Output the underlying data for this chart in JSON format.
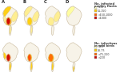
{
  "fig_bg": "#ffffff",
  "map_bg": "#f7f3e8",
  "outline_color": "#c8b89a",
  "maps_labels": [
    "A",
    "B",
    "C",
    "D"
  ],
  "legend_top_title1": "No. infected",
  "legend_top_title2": "poultry flocks",
  "legend_top_entries": [
    {
      "label": "1-50",
      "color": "#ffffcc"
    },
    {
      "label": "51-150",
      "color": "#ffcc00"
    },
    {
      "label": ">150-1000",
      "color": "#ff6600"
    },
    {
      "label": ">1000",
      "color": "#cc0000"
    }
  ],
  "legend_bot_title1": "No. infections",
  "legend_bot_title2": "in wild birds",
  "legend_bot_entries": [
    {
      "label": "1-25",
      "color": "#ffffcc"
    },
    {
      "label": "26-75",
      "color": "#ffcc00"
    },
    {
      "label": ">75-220",
      "color": "#ff6600"
    },
    {
      "label": ">220",
      "color": "#cc0000"
    }
  ],
  "top_row_highlights": [
    {
      "north": "#ffcc00",
      "northeast": "#ffee88",
      "central_red": "#cc0000",
      "central_orange": "#ff6600",
      "central_yellow": "#ffcc00",
      "west": "#ffee88",
      "pen_upper": "#ffee88"
    },
    {
      "north": "#ffee88",
      "northeast": "#ffee88",
      "central_orange": "#ffcc00",
      "central_yellow": "#ffee88",
      "pen_upper": "#ffee88"
    },
    {
      "central_yellow": "#ffee88",
      "northeast": "#ffee88"
    },
    {
      "north_light": "#ffff99"
    }
  ],
  "bot_row_highlights": [
    {
      "central_red": "#cc0000",
      "central_orange": "#ff6600",
      "west": "#ffcc00",
      "pen_upper": "#ffcc00"
    },
    {
      "central_red": "#ff4400",
      "central_orange": "#ffcc00",
      "pen_upper": "#ffcc00"
    },
    {
      "central_orange": "#ff6600",
      "central_yellow": "#ffcc00",
      "pen_upper": "#ffcc00"
    },
    {
      "pen_mid": "#ffcc00"
    }
  ]
}
